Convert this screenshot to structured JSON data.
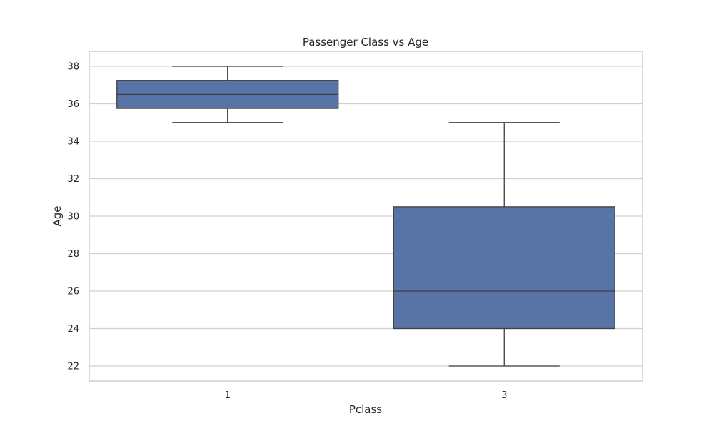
{
  "chart_data": {
    "type": "box",
    "title": "Passenger Class vs Age",
    "xlabel": "Pclass",
    "ylabel": "Age",
    "categories": [
      "1",
      "3"
    ],
    "ylim": [
      21.2,
      38.8
    ],
    "yticks": [
      22,
      24,
      26,
      28,
      30,
      32,
      34,
      36,
      38
    ],
    "grid": true,
    "boxes": [
      {
        "category": "1",
        "min": 35,
        "q1": 35.75,
        "median": 36.5,
        "q3": 37.25,
        "max": 38
      },
      {
        "category": "3",
        "min": 22,
        "q1": 24,
        "median": 26,
        "q3": 30.5,
        "max": 35
      }
    ],
    "colors": {
      "box_fill": "#5874a6",
      "line": "#3f3f3f",
      "grid": "#d0d0d0",
      "frame": "#cfcfcf",
      "text": "#262626"
    }
  }
}
